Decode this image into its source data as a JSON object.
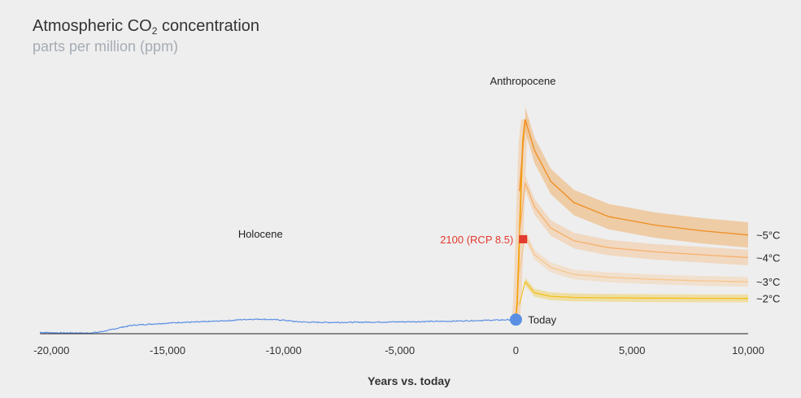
{
  "title": {
    "main": "Atmospheric CO",
    "sub": "2",
    "rest": " concentration"
  },
  "subtitle": "parts per million (ppm)",
  "colors": {
    "historical": "#5a8fe3",
    "anthro": "#f4a20c",
    "c5": "#ef8d1f",
    "c4": "#f6b06a",
    "c3": "#f7c68e",
    "c2": "#f2c11a",
    "marker_today": "#5a8fe3",
    "marker_2100": "#e23a2e"
  },
  "chart_data": {
    "type": "line",
    "xlabel": "Years vs. today",
    "xlim": [
      -20500,
      10000
    ],
    "xticks": [
      -20000,
      -15000,
      -10000,
      -5000,
      0,
      5000,
      10000
    ],
    "xtick_labels": [
      "-20,000",
      "-15,000",
      "-10,000",
      "-5,000",
      "0",
      "5,000",
      "10,000"
    ],
    "ylim": [
      180,
      1900
    ],
    "annotations": {
      "holocene": "Holocene",
      "anthropocene": "Anthropocene",
      "today": "Today",
      "rcp": "2100 (RCP 8.5)"
    },
    "historical": {
      "name": "",
      "x": [
        -20500,
        -20000,
        -19500,
        -19000,
        -18500,
        -18000,
        -17500,
        -17000,
        -16500,
        -16000,
        -15500,
        -15000,
        -14500,
        -14000,
        -13500,
        -13000,
        -12500,
        -12200,
        -12000,
        -11800,
        -11500,
        -11000,
        -10500,
        -10000,
        -9500,
        -9000,
        -8000,
        -7000,
        -6000,
        -5000,
        -4000,
        -3000,
        -2000,
        -1000,
        -500,
        0
      ],
      "y": [
        190,
        187,
        185,
        186,
        184,
        190,
        205,
        225,
        240,
        245,
        250,
        255,
        260,
        262,
        264,
        268,
        272,
        274,
        278,
        280,
        282,
        283,
        280,
        276,
        266,
        262,
        260,
        261,
        262,
        264,
        266,
        268,
        272,
        276,
        278,
        280
      ]
    },
    "anthropogenic": {
      "name": "",
      "x": [
        0,
        50,
        100,
        150,
        200,
        250,
        300,
        400
      ],
      "y": [
        280,
        400,
        600,
        850,
        1100,
        1350,
        1550,
        1700
      ]
    },
    "today": {
      "x": 0,
      "y": 280
    },
    "rcp_2100": {
      "x": 100,
      "y": 850
    },
    "scenarios": [
      {
        "name": "~5°C",
        "x": [
          400,
          800,
          1500,
          2500,
          4000,
          6000,
          8000,
          10000
        ],
        "y": [
          1700,
          1480,
          1260,
          1110,
          1010,
          950,
          910,
          880
        ],
        "band": 90
      },
      {
        "name": "~4°C",
        "x": [
          400,
          800,
          1500,
          2500,
          4000,
          6000,
          8000,
          10000
        ],
        "y": [
          1250,
          1080,
          930,
          840,
          790,
          760,
          740,
          720
        ],
        "band": 55
      },
      {
        "name": "~3°C",
        "x": [
          400,
          800,
          1500,
          2500,
          4000,
          6000,
          8000,
          10000
        ],
        "y": [
          880,
          740,
          650,
          600,
          580,
          565,
          555,
          548
        ],
        "band": 35
      },
      {
        "name": "~2°C",
        "x": [
          400,
          800,
          1500,
          2500,
          4000,
          6000,
          8000,
          10000
        ],
        "y": [
          550,
          470,
          445,
          437,
          434,
          432,
          431,
          430
        ],
        "band": 28
      }
    ]
  }
}
